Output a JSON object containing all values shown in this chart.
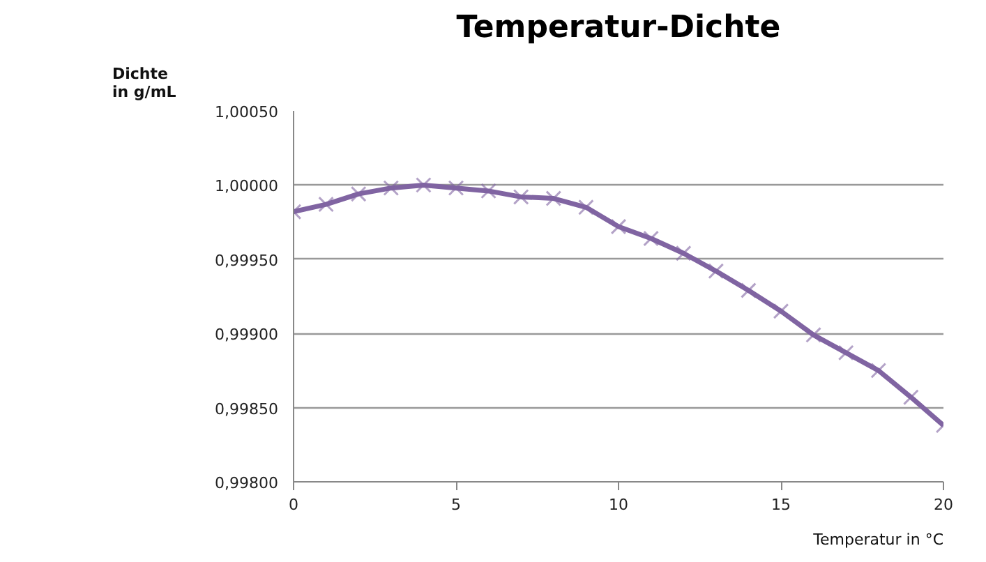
{
  "chart_data": {
    "type": "line",
    "title": "Temperatur-Dichte",
    "xlabel": "Temperatur in °C",
    "ylabel": "Dichte\nin g/mL",
    "x": [
      0,
      1,
      2,
      3,
      4,
      5,
      6,
      7,
      8,
      9,
      10,
      11,
      12,
      13,
      14,
      15,
      16,
      17,
      18,
      19,
      20
    ],
    "series": [
      {
        "color": "#8064a2",
        "values": [
          0.99982,
          0.99987,
          0.99994,
          0.99998,
          1.0,
          0.99998,
          0.99996,
          0.99992,
          0.99991,
          0.99985,
          0.99972,
          0.99964,
          0.99954,
          0.99942,
          0.99929,
          0.99915,
          0.99899,
          0.99887,
          0.99875,
          0.99857,
          0.99838
        ]
      }
    ],
    "xlim": [
      0,
      20
    ],
    "xticks": [
      0,
      5,
      10,
      15,
      20
    ],
    "ylim": [
      0.998,
      1.0005
    ],
    "yticks": [
      {
        "value": 0.998,
        "label": "0,99800"
      },
      {
        "value": 0.9985,
        "label": "0,99850"
      },
      {
        "value": 0.999,
        "label": "0,99900"
      },
      {
        "value": 0.9995,
        "label": "0,99950"
      },
      {
        "value": 1.0,
        "label": "1,00000"
      },
      {
        "value": 1.0005,
        "label": "1,00050"
      }
    ],
    "grid": "y",
    "marker": "cross",
    "line_style": "solid"
  }
}
